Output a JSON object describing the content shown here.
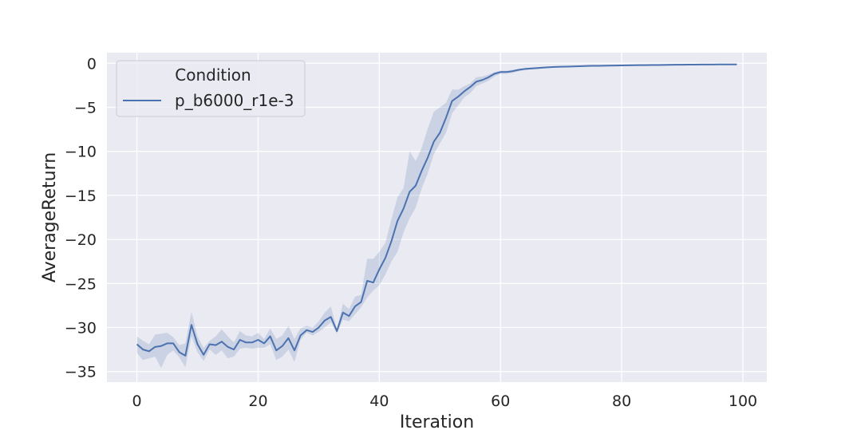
{
  "chart_data": {
    "type": "line",
    "xlabel": "Iteration",
    "ylabel": "AverageReturn",
    "xlim": [
      -4.95,
      103.95
    ],
    "ylim": [
      -36.2,
      1.2
    ],
    "xticks": [
      0,
      20,
      40,
      60,
      80,
      100
    ],
    "xtick_labels": [
      "0",
      "20",
      "40",
      "60",
      "80",
      "100"
    ],
    "yticks": [
      0,
      -5,
      -10,
      -15,
      -20,
      -25,
      -30,
      -35
    ],
    "ytick_labels": [
      "0",
      "−5",
      "−10",
      "−15",
      "−20",
      "−25",
      "−30",
      "−35"
    ],
    "grid": true,
    "legend": {
      "title": "Condition",
      "placement": "upper left",
      "entries": [
        "p_b6000_r1e-3"
      ]
    },
    "colors": {
      "background": "#eaeaf2",
      "grid": "#ffffff",
      "line": "#4c72b0",
      "band_fill": "#4c72b0",
      "band_opacity": 0.2
    },
    "series": [
      {
        "name": "p_b6000_r1e-3",
        "x": [
          0,
          1,
          2,
          3,
          4,
          5,
          6,
          7,
          8,
          9,
          10,
          11,
          12,
          13,
          14,
          15,
          16,
          17,
          18,
          19,
          20,
          21,
          22,
          23,
          24,
          25,
          26,
          27,
          28,
          29,
          30,
          31,
          32,
          33,
          34,
          35,
          36,
          37,
          38,
          39,
          40,
          41,
          42,
          43,
          44,
          45,
          46,
          47,
          48,
          49,
          50,
          51,
          52,
          53,
          54,
          55,
          56,
          57,
          58,
          59,
          60,
          61,
          62,
          63,
          64,
          65,
          66,
          67,
          68,
          69,
          70,
          71,
          72,
          73,
          74,
          75,
          76,
          77,
          78,
          79,
          80,
          81,
          82,
          83,
          84,
          85,
          86,
          87,
          88,
          89,
          90,
          91,
          92,
          93,
          94,
          95,
          96,
          97,
          98,
          99
        ],
        "values": [
          -31.9,
          -32.5,
          -32.7,
          -32.2,
          -32.1,
          -31.8,
          -31.8,
          -32.8,
          -33.2,
          -29.7,
          -31.9,
          -33.1,
          -31.9,
          -32.0,
          -31.6,
          -32.2,
          -32.5,
          -31.4,
          -31.7,
          -31.7,
          -31.4,
          -31.8,
          -31.0,
          -32.6,
          -32.1,
          -31.2,
          -32.6,
          -30.9,
          -30.3,
          -30.5,
          -30.0,
          -29.2,
          -28.8,
          -30.4,
          -28.3,
          -28.7,
          -27.6,
          -27.1,
          -24.7,
          -24.9,
          -23.4,
          -22.1,
          -20.2,
          -17.9,
          -16.5,
          -14.6,
          -13.9,
          -12.2,
          -10.7,
          -8.9,
          -7.9,
          -6.2,
          -4.3,
          -3.8,
          -3.2,
          -2.7,
          -2.1,
          -1.9,
          -1.6,
          -1.2,
          -1.0,
          -1.0,
          -0.9,
          -0.75,
          -0.65,
          -0.6,
          -0.55,
          -0.5,
          -0.45,
          -0.42,
          -0.4,
          -0.38,
          -0.36,
          -0.34,
          -0.32,
          -0.3,
          -0.29,
          -0.28,
          -0.27,
          -0.26,
          -0.25,
          -0.24,
          -0.23,
          -0.22,
          -0.21,
          -0.2,
          -0.2,
          -0.19,
          -0.18,
          -0.17,
          -0.17,
          -0.16,
          -0.16,
          -0.15,
          -0.15,
          -0.15,
          -0.14,
          -0.14,
          -0.14,
          -0.14
        ],
        "lower": [
          -32.9,
          -33.7,
          -33.5,
          -33.3,
          -34.6,
          -33.1,
          -32.6,
          -33.4,
          -34.5,
          -31.0,
          -32.8,
          -33.8,
          -32.5,
          -33.1,
          -32.6,
          -33.5,
          -33.3,
          -32.4,
          -32.3,
          -32.4,
          -32.3,
          -32.3,
          -31.9,
          -33.7,
          -33.3,
          -32.5,
          -33.9,
          -31.4,
          -30.6,
          -30.9,
          -30.5,
          -30.0,
          -29.4,
          -30.7,
          -29.1,
          -29.3,
          -28.5,
          -27.7,
          -26.6,
          -25.8,
          -25.2,
          -24.0,
          -22.5,
          -21.4,
          -19.2,
          -17.6,
          -16.4,
          -14.2,
          -12.5,
          -10.3,
          -9.1,
          -7.9,
          -5.7,
          -4.8,
          -3.9,
          -3.4,
          -2.6,
          -2.3,
          -2.0,
          -1.5,
          -1.2,
          -1.2,
          -1.1,
          -0.9,
          -0.8,
          -0.7,
          -0.65,
          -0.6,
          -0.55,
          -0.5,
          -0.47,
          -0.45,
          -0.43,
          -0.4,
          -0.38,
          -0.36,
          -0.34,
          -0.33,
          -0.32,
          -0.31,
          -0.3,
          -0.29,
          -0.28,
          -0.27,
          -0.26,
          -0.25,
          -0.24,
          -0.23,
          -0.22,
          -0.21,
          -0.2,
          -0.2,
          -0.19,
          -0.19,
          -0.18,
          -0.18,
          -0.18,
          -0.17,
          -0.17,
          -0.17
        ],
        "upper": [
          -31.0,
          -31.5,
          -31.9,
          -30.8,
          -30.7,
          -30.6,
          -31.1,
          -32.0,
          -31.8,
          -28.2,
          -31.0,
          -32.3,
          -31.5,
          -31.0,
          -30.2,
          -31.0,
          -31.7,
          -30.4,
          -30.9,
          -31.0,
          -30.6,
          -31.3,
          -30.1,
          -31.3,
          -30.9,
          -29.8,
          -31.3,
          -30.1,
          -29.8,
          -30.0,
          -29.3,
          -28.3,
          -27.6,
          -30.2,
          -27.3,
          -27.9,
          -26.5,
          -26.3,
          -22.2,
          -22.2,
          -21.4,
          -20.4,
          -17.7,
          -15.2,
          -14.2,
          -10.0,
          -11.1,
          -9.6,
          -7.4,
          -5.5,
          -5.0,
          -4.5,
          -3.0,
          -3.0,
          -2.6,
          -2.3,
          -1.6,
          -1.5,
          -1.3,
          -1.0,
          -0.85,
          -0.85,
          -0.75,
          -0.65,
          -0.55,
          -0.5,
          -0.45,
          -0.42,
          -0.38,
          -0.36,
          -0.34,
          -0.32,
          -0.3,
          -0.28,
          -0.27,
          -0.26,
          -0.25,
          -0.24,
          -0.23,
          -0.22,
          -0.21,
          -0.2,
          -0.19,
          -0.18,
          -0.17,
          -0.16,
          -0.16,
          -0.15,
          -0.14,
          -0.13,
          -0.13,
          -0.12,
          -0.12,
          -0.11,
          -0.11,
          -0.11,
          -0.1,
          -0.1,
          -0.1,
          -0.1
        ]
      }
    ]
  }
}
